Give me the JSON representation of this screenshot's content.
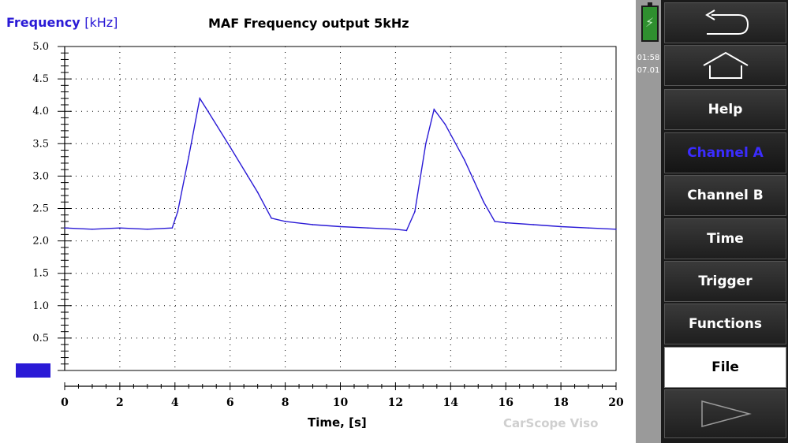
{
  "chart": {
    "ylabel_name": "Frequency",
    "ylabel_unit": "[kHz]",
    "title": "MAF Frequency output 5kHz",
    "xlabel": "Time, [s]",
    "watermark": "CarScope Viso"
  },
  "status": {
    "time": "01:58",
    "date": "07.01"
  },
  "menu": {
    "back": "back-icon",
    "home": "home-icon",
    "help": "Help",
    "channel_a": "Channel A",
    "channel_b": "Channel B",
    "time": "Time",
    "trigger": "Trigger",
    "functions": "Functions",
    "file": "File",
    "next": "next-icon"
  },
  "colors": {
    "trace": "#2a1ad6",
    "accent": "#2a1ad6",
    "panel": "#1a1a1a"
  },
  "chart_data": {
    "type": "line",
    "xlabel": "Time, [s]",
    "ylabel": "Frequency [kHz]",
    "xlim": [
      0,
      20
    ],
    "ylim": [
      0,
      5
    ],
    "x_ticks": [
      "0",
      "2",
      "4",
      "6",
      "8",
      "10",
      "12",
      "14",
      "16",
      "18",
      "20"
    ],
    "y_ticks": [
      "0.0",
      "0.5",
      "1.0",
      "1.5",
      "2.0",
      "2.5",
      "3.0",
      "3.5",
      "4.0",
      "4.5",
      "5.0"
    ],
    "grid": true,
    "series": [
      {
        "x": [
          0,
          1,
          2,
          3,
          3.9,
          4.1,
          4.5,
          4.9,
          5.2,
          6,
          7,
          7.5,
          8,
          9,
          10,
          11,
          12,
          12.4,
          12.7,
          13.1,
          13.4,
          13.8,
          14.5,
          15.2,
          15.6,
          16,
          17,
          18,
          19,
          20
        ],
        "y": [
          2.2,
          2.18,
          2.2,
          2.18,
          2.2,
          2.45,
          3.3,
          4.2,
          4.0,
          3.45,
          2.75,
          2.35,
          2.3,
          2.25,
          2.22,
          2.2,
          2.18,
          2.16,
          2.45,
          3.5,
          4.03,
          3.8,
          3.25,
          2.6,
          2.3,
          2.28,
          2.25,
          2.22,
          2.2,
          2.18
        ]
      }
    ]
  }
}
